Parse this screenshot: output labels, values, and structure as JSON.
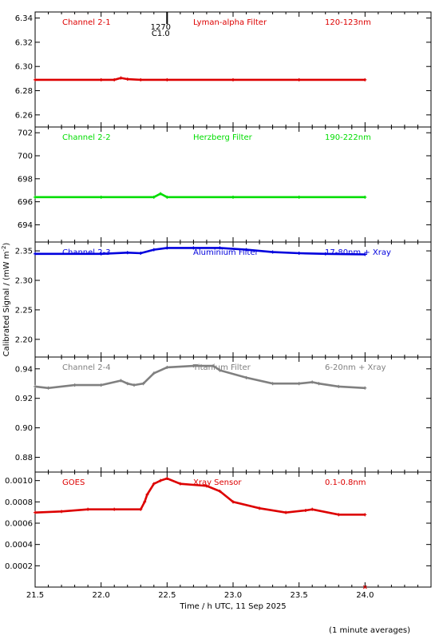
{
  "chart_data": {
    "type": "line",
    "xlabel": "Time / h UTC, 11 Sep 2025",
    "ylabel": "Calibrated Signal / (mW m",
    "ylabel_sup": "-2",
    "ylabel_close": ")",
    "footnote": "(1 minute averages)",
    "x_ticks": [
      "21.5",
      "22.0",
      "22.5",
      "23.0",
      "23.5",
      "24.0"
    ],
    "xlim": [
      21.5,
      24.5
    ],
    "marker": {
      "time": 22.5,
      "label_top": "1270",
      "label_bottom": "C1.0"
    },
    "panels": [
      {
        "labels": [
          "Channel 2-1",
          "Lyman-alpha Filter",
          "120-123nm"
        ],
        "color": "#dd0000",
        "ylim": [
          6.25,
          6.345
        ],
        "y_ticks": [
          6.26,
          6.28,
          6.3,
          6.32,
          6.34
        ],
        "y_tick_labels": [
          "6.26",
          "6.28",
          "6.30",
          "6.32",
          "6.34"
        ],
        "x": [
          21.5,
          22.0,
          22.1,
          22.15,
          22.2,
          22.3,
          22.5,
          23.0,
          23.5,
          24.0
        ],
        "values": [
          6.289,
          6.289,
          6.289,
          6.2905,
          6.2895,
          6.289,
          6.289,
          6.289,
          6.289,
          6.289
        ]
      },
      {
        "labels": [
          "Channel 2-2",
          "Herzberg Filter",
          "190-222nm"
        ],
        "color": "#00dd00",
        "ylim": [
          692.5,
          702.5
        ],
        "y_ticks": [
          694,
          696,
          698,
          700,
          702
        ],
        "y_tick_labels": [
          "694",
          "696",
          "698",
          "700",
          "702"
        ],
        "x": [
          21.5,
          22.0,
          22.4,
          22.45,
          22.5,
          23.0,
          23.5,
          24.0
        ],
        "values": [
          696.4,
          696.4,
          696.4,
          696.7,
          696.4,
          696.4,
          696.4,
          696.4
        ],
        "note": "annotation values"
      },
      {
        "labels": [
          "Channel 2-3",
          "Aluminium Filter",
          "17-80nm + Xray"
        ],
        "color": "#0000dd",
        "ylim": [
          2.17,
          2.365
        ],
        "y_ticks": [
          2.2,
          2.25,
          2.3,
          2.35
        ],
        "y_tick_labels": [
          "2.20",
          "2.25",
          "2.30",
          "2.35"
        ],
        "x": [
          21.5,
          22.0,
          22.2,
          22.3,
          22.4,
          22.5,
          22.7,
          22.9,
          23.1,
          23.3,
          23.5,
          23.7,
          24.0
        ],
        "values": [
          2.345,
          2.345,
          2.347,
          2.346,
          2.352,
          2.355,
          2.355,
          2.355,
          2.352,
          2.348,
          2.346,
          2.345,
          2.344
        ]
      },
      {
        "labels": [
          "Channel 2-4",
          "Titanium Filter",
          "6-20nm + Xray"
        ],
        "color": "#808080",
        "ylim": [
          0.87,
          0.948
        ],
        "y_ticks": [
          0.88,
          0.9,
          0.92,
          0.94
        ],
        "y_tick_labels": [
          "0.88",
          "0.90",
          "0.92",
          "0.94"
        ],
        "x": [
          21.5,
          21.6,
          21.8,
          22.0,
          22.15,
          22.2,
          22.25,
          22.32,
          22.4,
          22.5,
          22.7,
          22.85,
          22.9,
          23.1,
          23.3,
          23.5,
          23.6,
          23.65,
          23.8,
          24.0
        ],
        "values": [
          0.928,
          0.927,
          0.929,
          0.929,
          0.932,
          0.93,
          0.929,
          0.93,
          0.937,
          0.941,
          0.942,
          0.942,
          0.939,
          0.934,
          0.93,
          0.93,
          0.931,
          0.93,
          0.928,
          0.927
        ]
      },
      {
        "labels": [
          "GOES",
          "Xray Sensor",
          "0.1-0.8nm"
        ],
        "color": "#dd0000",
        "ylim": [
          0.0,
          0.00108
        ],
        "y_ticks": [
          0.0002,
          0.0004,
          0.0006,
          0.0008,
          0.001
        ],
        "y_tick_labels": [
          "0.0002",
          "0.0004",
          "0.0006",
          "0.0008",
          "0.0010"
        ],
        "x": [
          21.5,
          21.7,
          21.9,
          22.1,
          22.3,
          22.33,
          22.35,
          22.4,
          22.45,
          22.5,
          22.6,
          22.8,
          22.9,
          23.0,
          23.2,
          23.4,
          23.55,
          23.6,
          23.8,
          24.0
        ],
        "values": [
          0.0007,
          0.00071,
          0.00073,
          0.00073,
          0.00073,
          0.0008,
          0.00087,
          0.00097,
          0.001,
          0.00102,
          0.00097,
          0.00095,
          0.0009,
          0.0008,
          0.00074,
          0.0007,
          0.00072,
          0.00073,
          0.00068,
          0.00068
        ]
      }
    ]
  }
}
